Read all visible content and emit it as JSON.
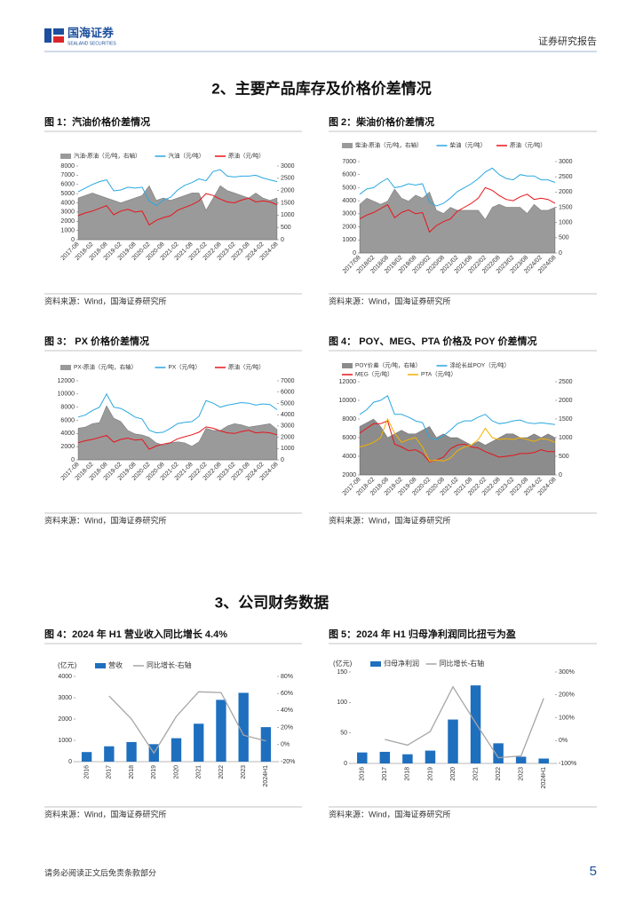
{
  "header": {
    "logo_cn": "国海证券",
    "logo_en": "SEALAND SECURITIES",
    "report_type": "证券研究报告"
  },
  "sections": [
    {
      "title": "2、主要产品库存及价格价差情况"
    },
    {
      "title": "3、公司财务数据"
    }
  ],
  "figures": [
    {
      "caption": "图 1：汽油价格价差情况",
      "source": "资料来源：Wind，国海证券研究所"
    },
    {
      "caption": "图 2：柴油价格价差情况",
      "source": "资料来源：Wind，国海证券研究所"
    },
    {
      "caption": "图 3： PX 价格价差情况",
      "source": "资料来源：Wind，国海证券研究所"
    },
    {
      "caption": "图 4： POY、MEG、PTA 价格及 POY 价差情况",
      "source": "资料来源：Wind，国海证券研究所"
    },
    {
      "caption": "图 4：2024 年 H1 营业收入同比增长 4.4%",
      "source": "资料来源：Wind，国海证券研究所"
    },
    {
      "caption": "图 5：2024 年 H1 归母净利润同比扭亏为盈",
      "source": "资料来源：Wind，国海证券研究所"
    }
  ],
  "chart_data": [
    {
      "type": "line",
      "categories": [
        "2017-08",
        null,
        "2018-02",
        null,
        "2018-08",
        null,
        "2019-02",
        null,
        "2019-08",
        null,
        "2020-02",
        null,
        "2020-08",
        null,
        "2021-02",
        null,
        "2021-08",
        null,
        "2022-02",
        null,
        "2022-08",
        null,
        "2023-02",
        null,
        "2023-08",
        null,
        "2024-02",
        null,
        "2024-08"
      ],
      "ylim": [
        0,
        8000
      ],
      "yticks": [
        0,
        1000,
        2000,
        3000,
        4000,
        5000,
        6000,
        7000,
        8000
      ],
      "y2lim": [
        0,
        3000
      ],
      "y2ticks": [
        0,
        500,
        1000,
        1500,
        2000,
        2500,
        3000
      ],
      "series": [
        {
          "name": "汽油-原油（元/吨，右轴）",
          "type": "area",
          "axis": "y2",
          "color": "#9a9a9a",
          "values": [
            1700,
            1800,
            1900,
            1800,
            1700,
            1600,
            1500,
            1600,
            1700,
            1800,
            2200,
            1600,
            1700,
            1600,
            1700,
            1800,
            1900,
            1900,
            1200,
            1700,
            2200,
            2000,
            1900,
            1800,
            1700,
            1900,
            1700,
            1600,
            1700
          ]
        },
        {
          "name": "汽油（元/吨）",
          "type": "line",
          "color": "#2aa7e0",
          "values": [
            5200,
            5600,
            6000,
            6300,
            6500,
            5300,
            5400,
            5700,
            5600,
            5700,
            4200,
            3700,
            4300,
            4600,
            5400,
            5900,
            6200,
            6600,
            6400,
            7400,
            7600,
            6900,
            6800,
            6900,
            6900,
            7000,
            6700,
            6500,
            6300
          ]
        },
        {
          "name": "原油（元/吨）",
          "type": "line",
          "color": "#e8141b",
          "values": [
            2600,
            2900,
            3100,
            3400,
            3700,
            2700,
            3100,
            3300,
            3000,
            3100,
            1600,
            2100,
            2400,
            2600,
            3200,
            3500,
            3800,
            4200,
            5000,
            4800,
            4400,
            4100,
            4000,
            4300,
            4500,
            4100,
            4200,
            4100,
            3800
          ]
        }
      ]
    },
    {
      "type": "line",
      "categories": [
        "2017/08",
        null,
        "2018/02",
        null,
        "2018/08",
        null,
        "2019/02",
        null,
        "2019/08",
        null,
        "2020/02",
        null,
        "2020/08",
        null,
        "2021/02",
        null,
        "2021/08",
        null,
        "2022/02",
        null,
        "2022/08",
        null,
        "2023/02",
        null,
        "2023/08",
        null,
        "2024/02",
        null,
        "2024/08"
      ],
      "ylim": [
        0,
        7000
      ],
      "yticks": [
        0,
        1000,
        2000,
        3000,
        4000,
        5000,
        6000,
        7000
      ],
      "y2lim": [
        0,
        3000
      ],
      "y2ticks": [
        0,
        500,
        1000,
        1500,
        2000,
        2500,
        3000
      ],
      "series": [
        {
          "name": "柴油-原油（元/吨，右轴）",
          "type": "area",
          "axis": "y2",
          "color": "#9a9a9a",
          "values": [
            1600,
            1800,
            1700,
            1600,
            1700,
            2100,
            1800,
            1700,
            1900,
            1800,
            2000,
            1400,
            1300,
            1500,
            1400,
            1400,
            1400,
            1400,
            1100,
            1500,
            1600,
            1500,
            1500,
            1500,
            1300,
            1600,
            1400,
            1400,
            1500
          ]
        },
        {
          "name": "柴油（元/吨）",
          "type": "line",
          "color": "#2aa7e0",
          "values": [
            4500,
            4900,
            5000,
            5400,
            5700,
            5000,
            5100,
            5300,
            5200,
            5300,
            3900,
            3600,
            3800,
            4200,
            4700,
            5000,
            5300,
            5700,
            6200,
            6500,
            6000,
            5700,
            5600,
            6000,
            5900,
            5900,
            5600,
            5600,
            5400
          ]
        },
        {
          "name": "原油（元/吨）",
          "type": "line",
          "color": "#e8141b",
          "values": [
            2600,
            2900,
            3100,
            3400,
            3700,
            2700,
            3100,
            3300,
            3000,
            3100,
            1600,
            2100,
            2400,
            2600,
            3200,
            3500,
            3800,
            4200,
            5000,
            4800,
            4400,
            4100,
            4000,
            4300,
            4500,
            4100,
            4200,
            4100,
            3800
          ]
        }
      ]
    },
    {
      "type": "line",
      "categories": [
        "2017-08",
        null,
        "2018-02",
        null,
        "2018-08",
        null,
        "2019-02",
        null,
        "2019-08",
        null,
        "2020-02",
        null,
        "2020-08",
        null,
        "2021-02",
        null,
        "2021-08",
        null,
        "2022-02",
        null,
        "2022-08",
        null,
        "2023-02",
        null,
        "2023-08",
        null,
        "2024-02",
        null,
        "2024-08"
      ],
      "ylim": [
        0,
        12000
      ],
      "yticks": [
        0,
        2000,
        4000,
        6000,
        8000,
        10000,
        12000
      ],
      "y2lim": [
        0,
        7000
      ],
      "y2ticks": [
        0,
        1000,
        2000,
        3000,
        4000,
        5000,
        6000,
        7000
      ],
      "series": [
        {
          "name": "PX-原油（元/吨，右轴）",
          "type": "area",
          "axis": "y2",
          "color": "#9a9a9a",
          "values": [
            2800,
            2900,
            3200,
            3300,
            4800,
            3700,
            3400,
            2600,
            2300,
            2200,
            2000,
            1500,
            1300,
            1500,
            1600,
            1500,
            1200,
            1600,
            2800,
            2600,
            2600,
            3000,
            3200,
            3100,
            2900,
            3000,
            3100,
            3200,
            2700
          ]
        },
        {
          "name": "PX（元/吨）",
          "type": "line",
          "color": "#2aa7e0",
          "values": [
            6500,
            6800,
            7500,
            8000,
            10000,
            8000,
            7800,
            7200,
            6500,
            6200,
            4500,
            4100,
            4200,
            4800,
            5500,
            5700,
            5800,
            6600,
            9000,
            8600,
            8000,
            8300,
            8500,
            8700,
            8600,
            8300,
            8500,
            8400,
            7600
          ]
        },
        {
          "name": "原油（元/吨）",
          "type": "line",
          "color": "#e8141b",
          "values": [
            2600,
            2900,
            3100,
            3400,
            3700,
            2700,
            3100,
            3300,
            3000,
            3100,
            1600,
            2100,
            2400,
            2600,
            3200,
            3500,
            3800,
            4200,
            5000,
            4800,
            4400,
            4100,
            4000,
            4300,
            4500,
            4100,
            4200,
            4100,
            3800
          ]
        }
      ]
    },
    {
      "type": "line",
      "categories": [
        "2017-08",
        null,
        "2018-02",
        null,
        "2018-08",
        null,
        "2019-02",
        null,
        "2019-08",
        null,
        "2020-02",
        null,
        "2020-08",
        null,
        "2021-02",
        null,
        "2021-08",
        null,
        "2022-02",
        null,
        "2022-08",
        null,
        "2023-02",
        null,
        "2023-08",
        null,
        "2024-02",
        null,
        "2024-08"
      ],
      "ylim": [
        2000,
        12000
      ],
      "yticks": [
        2000,
        4000,
        6000,
        8000,
        10000,
        12000
      ],
      "y2lim": [
        0,
        2500
      ],
      "y2ticks": [
        0,
        500,
        1000,
        1500,
        2000,
        2500
      ],
      "series": [
        {
          "name": "POY价差（元/吨，右轴）",
          "type": "area",
          "axis": "y2",
          "color": "#8c8c8c",
          "values": [
            1300,
            1400,
            1500,
            1300,
            1000,
            1100,
            1200,
            1100,
            1100,
            1200,
            1300,
            1000,
            1100,
            1000,
            1000,
            900,
            800,
            900,
            800,
            900,
            1000,
            1100,
            1100,
            1000,
            1000,
            1100,
            1000,
            1100,
            1000
          ]
        },
        {
          "name": "涤纶长丝POY（元/吨）",
          "type": "line",
          "color": "#2aa7e0",
          "values": [
            8500,
            9000,
            9800,
            10000,
            10500,
            8500,
            8500,
            8200,
            7800,
            7600,
            6000,
            5800,
            6200,
            6800,
            7500,
            7800,
            7800,
            8200,
            8500,
            7800,
            7500,
            7600,
            7800,
            7900,
            7600,
            7500,
            7600,
            7500,
            7400
          ]
        },
        {
          "name": "MEG（元/吨）",
          "type": "line",
          "color": "#e8141b",
          "values": [
            6500,
            7000,
            7500,
            7500,
            7800,
            5300,
            5000,
            4600,
            4700,
            4300,
            3400,
            3600,
            3900,
            4800,
            5200,
            5300,
            5000,
            4900,
            4500,
            4200,
            3900,
            4000,
            4100,
            4300,
            4300,
            4400,
            4700,
            4500,
            4500
          ]
        },
        {
          "name": "PTA（元/吨）",
          "type": "line",
          "color": "#f5b000",
          "values": [
            5000,
            5200,
            5500,
            6000,
            8000,
            6500,
            5500,
            5800,
            6000,
            5000,
            3500,
            3600,
            3500,
            3800,
            4600,
            5000,
            5200,
            5800,
            7000,
            6000,
            5800,
            5900,
            5800,
            6000,
            5800,
            5600,
            5900,
            5800,
            5500
          ]
        }
      ]
    },
    {
      "type": "bar",
      "ylabel": "(亿元)",
      "categories": [
        "2016",
        "2017",
        "2018",
        "2019",
        "2020",
        "2021",
        "2022",
        "2023",
        "2024H1"
      ],
      "ylim": [
        0,
        4000
      ],
      "yticks": [
        0,
        1000,
        2000,
        3000,
        4000
      ],
      "y2lim": [
        -20,
        80
      ],
      "y2ticks": [
        {
          "value": -20,
          "label": "-20%"
        },
        {
          "value": 0,
          "label": "0%"
        },
        {
          "value": 20,
          "label": "20%"
        },
        {
          "value": 40,
          "label": "40%"
        },
        {
          "value": 60,
          "label": "60%"
        },
        {
          "value": 80,
          "label": "80%"
        }
      ],
      "series": [
        {
          "name": "营收",
          "type": "bar",
          "color": "#1f6fbf",
          "values": [
            450,
            720,
            920,
            820,
            1100,
            1780,
            2900,
            3230,
            1620
          ]
        },
        {
          "name": "同比增长-右轴",
          "type": "line",
          "axis": "y2",
          "color": "#a6a6a6",
          "values": [
            null,
            57,
            30,
            -10,
            33,
            62,
            61,
            11,
            4.4
          ]
        }
      ]
    },
    {
      "type": "bar",
      "ylabel": "(亿元)",
      "categories": [
        "2016",
        "2017",
        "2018",
        "2019",
        "2020",
        "2021",
        "2022",
        "2023",
        "2024H1"
      ],
      "ylim": [
        0,
        150
      ],
      "yticks": [
        0,
        50,
        100,
        150
      ],
      "y2lim": [
        -100,
        300
      ],
      "y2ticks": [
        {
          "value": -100,
          "label": "-100%"
        },
        {
          "value": 0,
          "label": "0%"
        },
        {
          "value": 100,
          "label": "100%"
        },
        {
          "value": 200,
          "label": "200%"
        },
        {
          "value": 300,
          "label": "300%"
        }
      ],
      "series": [
        {
          "name": "归母净利润",
          "type": "bar",
          "color": "#1f6fbf",
          "values": [
            18,
            19,
            15,
            21,
            72,
            128,
            33,
            11,
            8
          ]
        },
        {
          "name": "同比增长-右轴",
          "type": "line",
          "axis": "y2",
          "color": "#a6a6a6",
          "values": [
            null,
            5,
            -20,
            40,
            235,
            77,
            -75,
            -67,
            185
          ]
        }
      ]
    }
  ],
  "footer": {
    "disclaimer": "请务必阅读正文后免责条款部分",
    "page": 5
  }
}
